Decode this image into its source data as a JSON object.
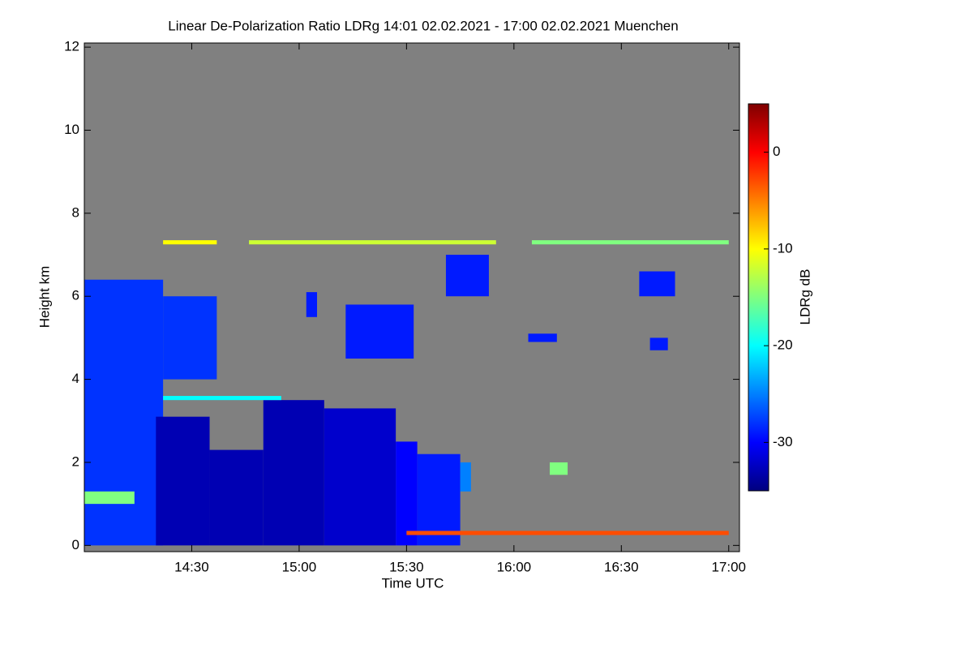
{
  "chart_data": {
    "type": "heatmap",
    "title": "Linear De-Polarization Ratio LDRg   14:01 02.02.2021 - 17:00 02.02.2021 Muenchen",
    "xlabel": "Time UTC",
    "ylabel": "Height km",
    "colorbar_label": "LDRg dB",
    "xlim": [
      "14:00",
      "17:03"
    ],
    "xticks": [
      "14:30",
      "15:00",
      "15:30",
      "16:00",
      "16:30",
      "17:00"
    ],
    "ylim": [
      -0.15,
      12.1
    ],
    "yticks": [
      0,
      2,
      4,
      6,
      8,
      10,
      12
    ],
    "clim": [
      -35,
      5
    ],
    "cticks": [
      -30,
      -20,
      -10,
      0
    ],
    "colormap": "jet",
    "background": "#808080",
    "regions": [
      {
        "x": [
          "14:00",
          "14:22"
        ],
        "y": [
          0,
          6.4
        ],
        "value": -28
      },
      {
        "x": [
          "14:22",
          "14:37"
        ],
        "y": [
          4.0,
          6.0
        ],
        "value": -28
      },
      {
        "x": [
          "14:20",
          "14:35"
        ],
        "y": [
          0,
          3.1
        ],
        "value": -33
      },
      {
        "x": [
          "14:35",
          "14:50"
        ],
        "y": [
          0,
          2.3
        ],
        "value": -33
      },
      {
        "x": [
          "14:50",
          "15:07"
        ],
        "y": [
          0,
          3.5
        ],
        "value": -33
      },
      {
        "x": [
          "15:07",
          "15:27"
        ],
        "y": [
          0,
          3.3
        ],
        "value": -32
      },
      {
        "x": [
          "15:27",
          "15:33"
        ],
        "y": [
          0,
          2.5
        ],
        "value": -30
      },
      {
        "x": [
          "15:33",
          "15:45"
        ],
        "y": [
          0,
          2.2
        ],
        "value": -29
      },
      {
        "x": [
          "14:00",
          "14:14"
        ],
        "y": [
          1.0,
          1.3
        ],
        "value": -15
      },
      {
        "x": [
          "14:22",
          "14:37"
        ],
        "y": [
          7.25,
          7.35
        ],
        "value": -10
      },
      {
        "x": [
          "14:46",
          "15:55"
        ],
        "y": [
          7.25,
          7.35
        ],
        "value": -12
      },
      {
        "x": [
          "16:05",
          "17:00"
        ],
        "y": [
          7.25,
          7.35
        ],
        "value": -15
      },
      {
        "x": [
          "15:30",
          "17:00"
        ],
        "y": [
          0.25,
          0.35
        ],
        "value": -3
      },
      {
        "x": [
          "15:13",
          "15:32"
        ],
        "y": [
          4.5,
          5.8
        ],
        "value": -29
      },
      {
        "x": [
          "15:41",
          "15:53"
        ],
        "y": [
          6.0,
          7.0
        ],
        "value": -29
      },
      {
        "x": [
          "16:35",
          "16:45"
        ],
        "y": [
          6.0,
          6.6
        ],
        "value": -29
      },
      {
        "x": [
          "16:04",
          "16:12"
        ],
        "y": [
          4.9,
          5.1
        ],
        "value": -29
      },
      {
        "x": [
          "16:38",
          "16:43"
        ],
        "y": [
          4.7,
          5.0
        ],
        "value": -29
      },
      {
        "x": [
          "15:02",
          "15:05"
        ],
        "y": [
          5.5,
          6.1
        ],
        "value": -29
      },
      {
        "x": [
          "14:22",
          "14:55"
        ],
        "y": [
          3.5,
          3.6
        ],
        "value": -20
      },
      {
        "x": [
          "15:45",
          "15:48"
        ],
        "y": [
          1.3,
          2.0
        ],
        "value": -25
      },
      {
        "x": [
          "16:10",
          "16:15"
        ],
        "y": [
          1.7,
          2.0
        ],
        "value": -15
      }
    ]
  }
}
